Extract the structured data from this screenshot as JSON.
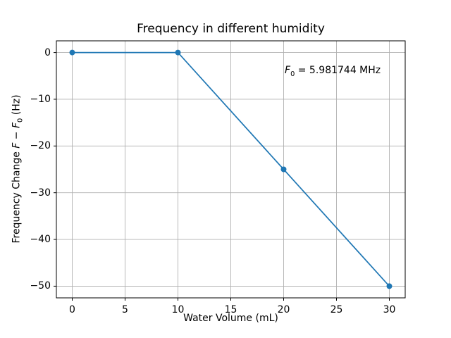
{
  "chart_data": {
    "type": "line",
    "title": "Frequency in different humidity",
    "xlabel": "Water Volume (mL)",
    "ylabel": "Frequency Change F − F₀ (Hz)",
    "ylabel_parts": {
      "prefix": "Frequency Change ",
      "var1": "F",
      "minus": " − ",
      "var2": "F",
      "sub": "0",
      "suffix": " (Hz)"
    },
    "annotation": "F₀ = 5.981744 MHz",
    "annotation_parts": {
      "var": "F",
      "sub": "0",
      "rest": " = 5.981744 MHz"
    },
    "x": [
      0,
      10,
      20,
      30
    ],
    "y": [
      0,
      0,
      -25,
      -50
    ],
    "series": [
      {
        "name": "frequency-change",
        "x": [
          0,
          10,
          20,
          30
        ],
        "values": [
          0,
          0,
          -25,
          -50
        ]
      }
    ],
    "xtick_values": [
      0,
      5,
      10,
      15,
      20,
      25,
      30
    ],
    "xtick_labels": [
      "0",
      "5",
      "10",
      "15",
      "20",
      "25",
      "30"
    ],
    "ytick_values": [
      0,
      -10,
      -20,
      -30,
      -40,
      -50
    ],
    "ytick_labels": [
      "0",
      "−10",
      "−20",
      "−30",
      "−40",
      "−50"
    ],
    "xlim": [
      -1.5,
      31.5
    ],
    "ylim": [
      -52.5,
      2.5
    ],
    "grid": true,
    "legend": "none",
    "marker": "o",
    "line_color": "#1f77b4",
    "grid_color": "#b0b0b0",
    "spine_color": "#000000",
    "background_color": "#ffffff"
  }
}
